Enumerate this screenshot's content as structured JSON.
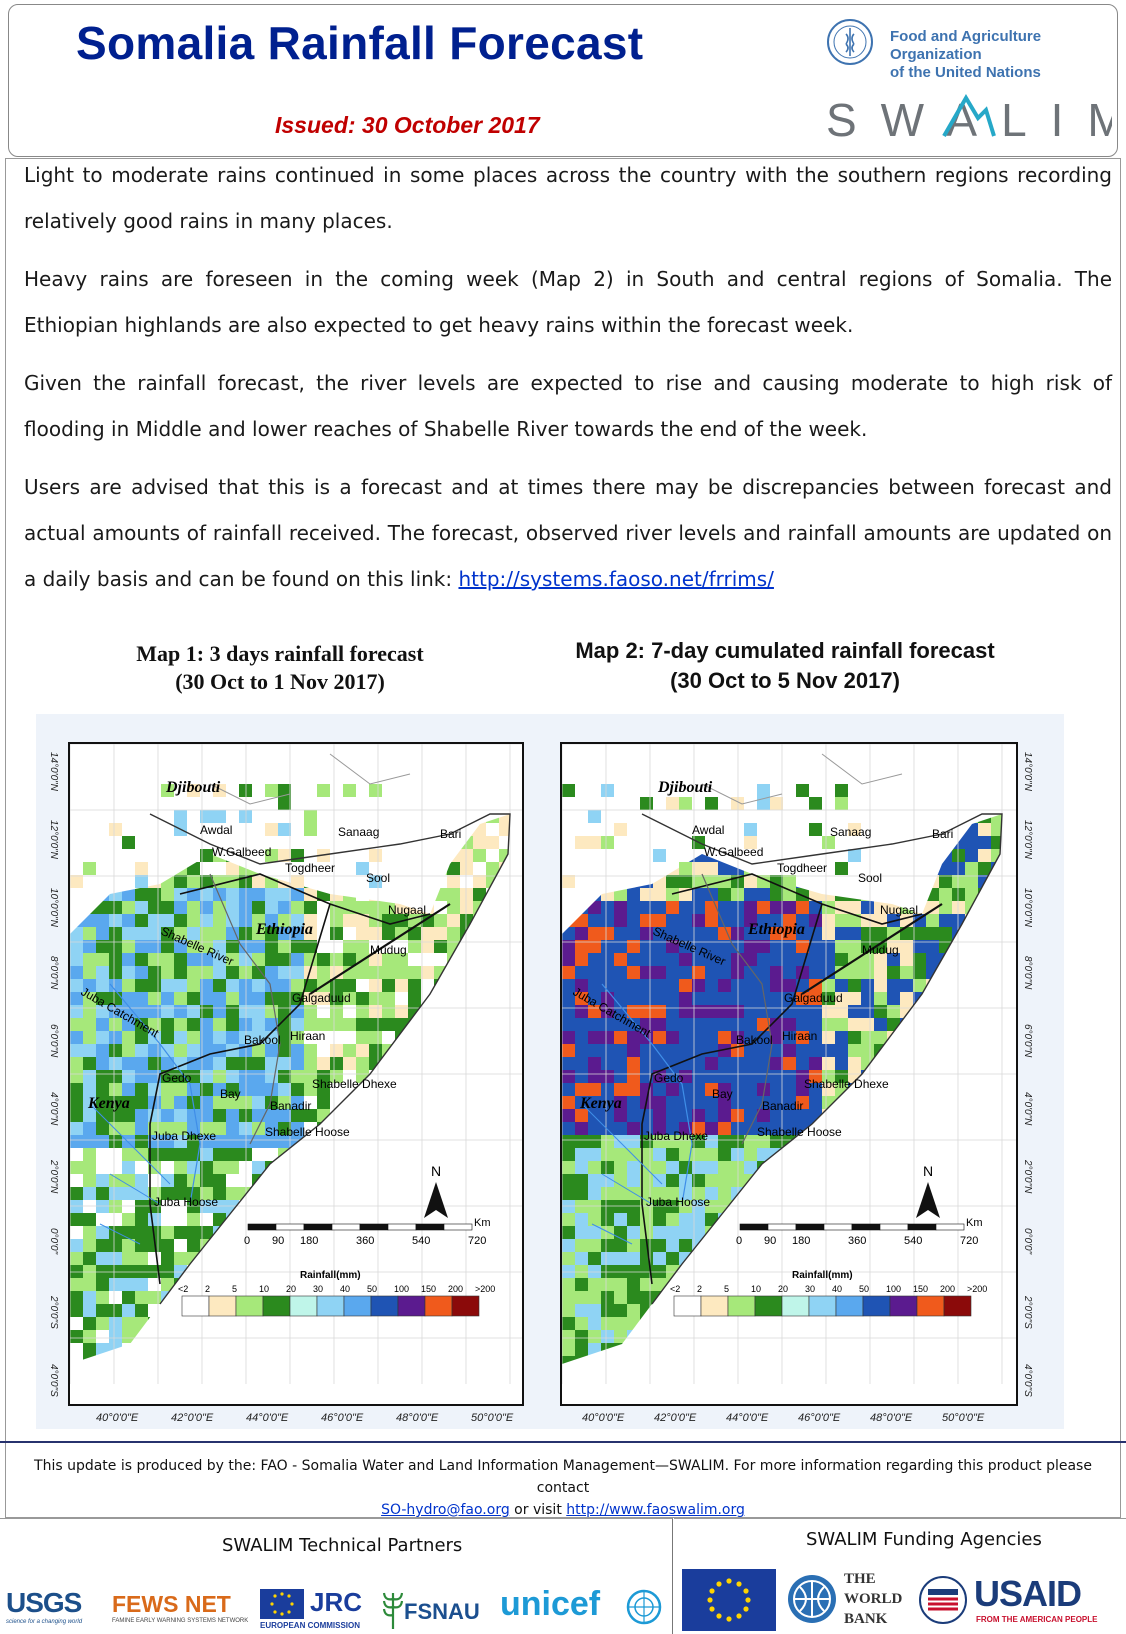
{
  "header": {
    "title": "Somalia Rainfall Forecast",
    "issued": "Issued:  30 October 2017",
    "fao_name_line1": "Food and Agriculture Organization",
    "fao_name_line2": "of the United Nations",
    "swalim_logo_text": "SWALIM"
  },
  "body": {
    "paragraph1": "Light to moderate rains continued in some places across the country with the southern regions recording relatively good rains in many places.",
    "paragraph2": "Heavy rains are foreseen in the coming week (Map 2) in South and central regions of Somalia. The Ethiopian highlands are also expected to get heavy rains within the forecast week.",
    "paragraph3": "Given the rainfall forecast, the river levels are expected to rise and causing moderate to high risk of flooding in Middle and lower reaches of Shabelle River towards the end of the week.",
    "paragraph4_text": "Users are  advised that this is a forecast  and at times there may be discrepancies between forecast and actual amounts of rainfall received. The forecast, observed river levels and rainfall amounts are updated on a daily basis and can be found on this link: ",
    "paragraph4_link": "http://systems.faoso.net/frrims/"
  },
  "maps": {
    "map1_title_line1": "Map 1: 3 days rainfall forecast",
    "map1_title_line2": "(30 Oct to 1 Nov 2017)",
    "map2_title_line1": "Map 2: 7-day cumulated rainfall forecast",
    "map2_title_line2": "(30 Oct to 5 Nov 2017)",
    "latitudes": [
      "14°0'0\"N",
      "12°0'0\"N",
      "10°0'0\"N",
      "8°0'0\"N",
      "6°0'0\"N",
      "4°0'0\"N",
      "2°0'0\"N",
      "0°0'0\"",
      "2°0'0\"S",
      "4°0'0\"S"
    ],
    "longitudes": [
      "40°0'0\"E",
      "42°0'0\"E",
      "44°0'0\"E",
      "46°0'0\"E",
      "48°0'0\"E",
      "50°0'0\"E"
    ],
    "countries": [
      "Djibouti",
      "Ethiopia",
      "Kenya"
    ],
    "regions": [
      "Awdal",
      "W.Galbeed",
      "Sanaag",
      "Bari",
      "Togdheer",
      "Sool",
      "Nugaal",
      "Mudug",
      "Galgaduud",
      "Hiraan",
      "Bakool",
      "Gedo",
      "Bay",
      "Shabelle Dhexe",
      "Banadir",
      "Shabelle Hoose",
      "Juba Dhexe",
      "Juba Hoose",
      "Shabelle River",
      "Juba Catchment"
    ],
    "north_label": "N",
    "scale_unit": "Km",
    "scale_ticks": [
      "0",
      "90",
      "180",
      "360",
      "540",
      "720"
    ],
    "legend_title": "Rainfall(mm)",
    "legend_classes": [
      {
        "label": "<2",
        "color": "#ffffff"
      },
      {
        "label": "2",
        "color": "#fde9c0"
      },
      {
        "label": "5",
        "color": "#a6e87a"
      },
      {
        "label": "10",
        "color": "#2b8a1e"
      },
      {
        "label": "20",
        "color": "#bff5e9"
      },
      {
        "label": "30",
        "color": "#8fd3f4"
      },
      {
        "label": "40",
        "color": "#5aa8ee"
      },
      {
        "label": "50",
        "color": "#1f54b4"
      },
      {
        "label": "100",
        "color": "#5b1b8f"
      },
      {
        "label": "150",
        "color": "#f05a1c"
      },
      {
        "label": "200",
        "color": "#8b0a0a"
      },
      {
        "label": ">200",
        "color": "#8b0a0a"
      }
    ]
  },
  "footer": {
    "note_text": "This update is produced by the: FAO - Somalia Water and Land Information Management—SWALIM. For more information regarding this product please contact",
    "email": "SO-hydro@fao.org",
    "or_visit": " or visit ",
    "website": "http://www.faoswalim.org",
    "partners_title": "SWALIM Technical Partners",
    "funders_title": "SWALIM Funding Agencies",
    "partner_logos": [
      "USGS",
      "science for a changing world",
      "FEWS NET",
      "FAMINE EARLY WARNING SYSTEMS NETWORK",
      "JRC",
      "EUROPEAN COMMISSION",
      "FSNAU",
      "unicef"
    ],
    "funder_logos": [
      "THE",
      "WORLD",
      "BANK",
      "USAID",
      "FROM THE AMERICAN PEOPLE"
    ]
  }
}
